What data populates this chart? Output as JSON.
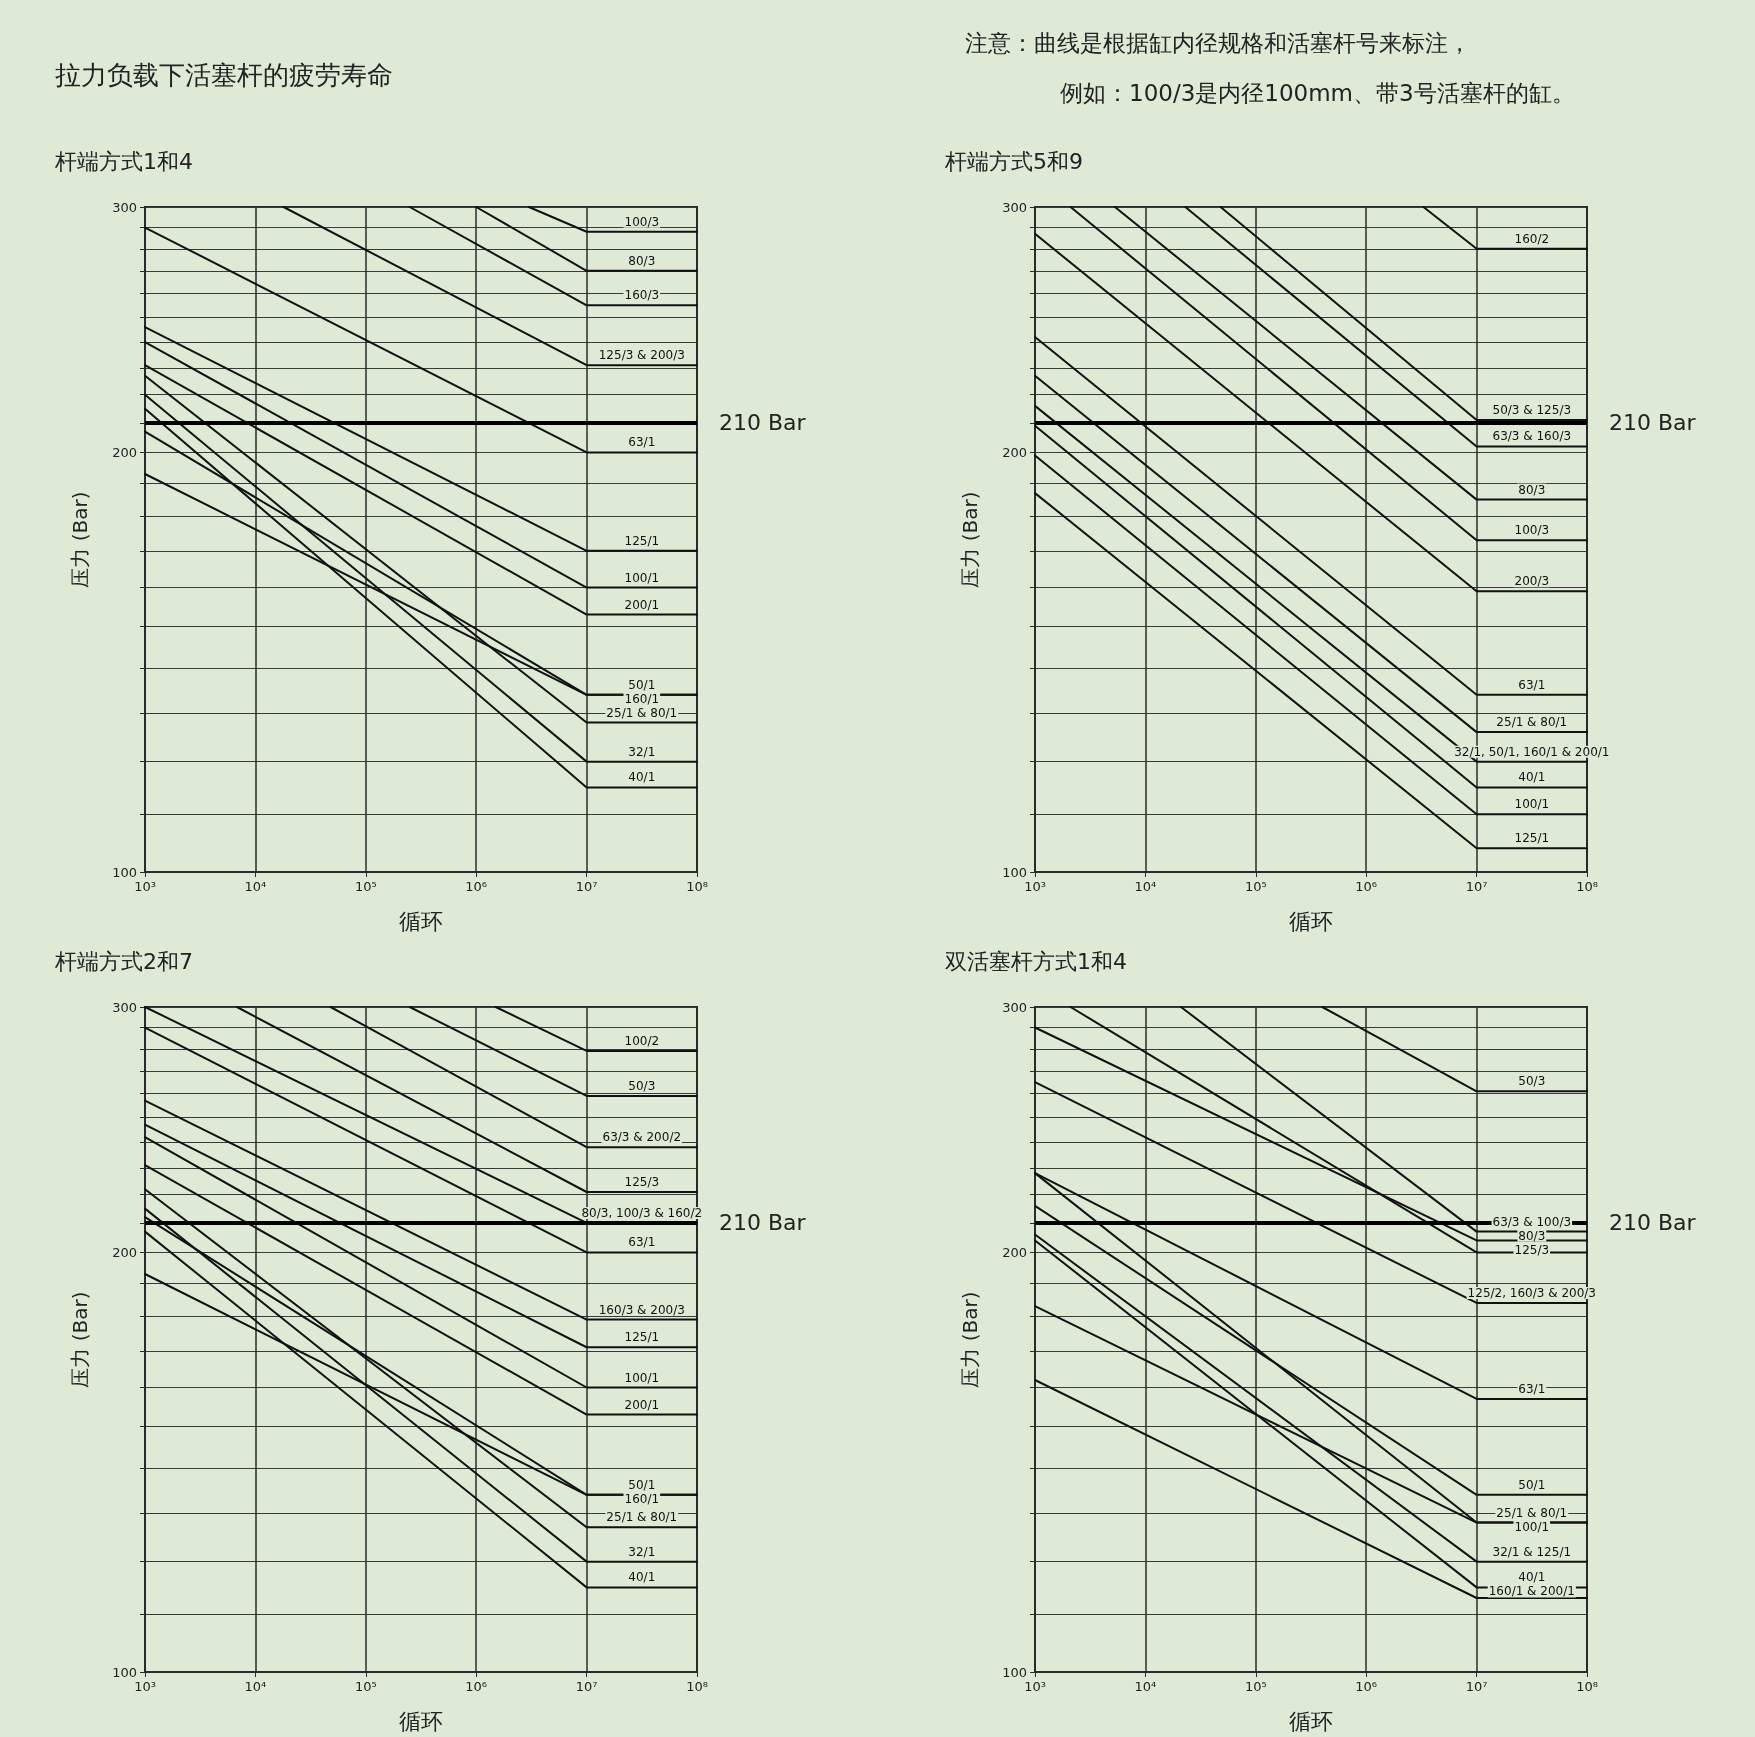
{
  "chart_data": [
    {
      "type": "other",
      "title": "拉力负载下活塞杆的疲劳寿命",
      "annotations": [
        "注意：曲线是根据缸内径规格和活塞杆号来标注，",
        "例如：100/3是内径100mm、带3号活塞杆的缸。"
      ]
    },
    {
      "type": "line",
      "title": "杆端方式1和4",
      "xlabel": "循环",
      "ylabel": "压力 (Bar)",
      "log": "xy",
      "grid": true,
      "xlim": [
        1000,
        100000000
      ],
      "xticks": [
        {
          "value": 1000,
          "label": "10³"
        },
        {
          "value": 10000,
          "label": "10⁴"
        },
        {
          "value": 100000,
          "label": "10⁵"
        },
        {
          "value": 1000000,
          "label": "10⁶"
        },
        {
          "value": 10000000,
          "label": "10⁷"
        },
        {
          "value": 100000000,
          "label": "10⁸"
        }
      ],
      "ylim": [
        100,
        300
      ],
      "yticks": [
        100,
        {
          "value": 110,
          "label": null
        },
        {
          "value": 120,
          "label": null
        },
        {
          "value": 130,
          "label": null
        },
        {
          "value": 140,
          "label": null
        },
        {
          "value": 150,
          "label": null
        },
        {
          "value": 160,
          "label": null
        },
        {
          "value": 170,
          "label": null
        },
        {
          "value": 180,
          "label": null
        },
        {
          "value": 190,
          "label": null
        },
        200,
        {
          "value": 210,
          "label": null
        },
        {
          "value": 220,
          "label": null
        },
        {
          "value": 230,
          "label": null
        },
        {
          "value": 240,
          "label": null
        },
        {
          "value": 250,
          "label": null
        },
        {
          "value": 260,
          "label": null
        },
        {
          "value": 270,
          "label": null
        },
        {
          "value": 280,
          "label": null
        },
        {
          "value": 290,
          "label": null
        },
        300
      ],
      "ref_lines": [
        {
          "axis": "y",
          "value": 210,
          "label": "210 Bar"
        }
      ],
      "series": [
        {
          "name": "100/3",
          "color": "#111111",
          "x": [
            3000000,
            10000000,
            100000000
          ],
          "values": [
            300,
            288,
            288
          ]
        },
        {
          "name": "80/3",
          "color": "#111111",
          "x": [
            1000000,
            10000000,
            100000000
          ],
          "values": [
            300,
            270,
            270
          ]
        },
        {
          "name": "160/3",
          "color": "#111111",
          "x": [
            250000,
            10000000,
            100000000
          ],
          "values": [
            300,
            255,
            255
          ]
        },
        {
          "name": "125/3 & 200/3",
          "color": "#111111",
          "x": [
            18000,
            10000000,
            100000000
          ],
          "values": [
            300,
            231,
            231
          ]
        },
        {
          "name": "63/1",
          "color": "#111111",
          "x": [
            1000,
            10000000,
            100000000
          ],
          "values": [
            290,
            200,
            200
          ]
        },
        {
          "name": "125/1",
          "color": "#111111",
          "x": [
            1000,
            10000000,
            100000000
          ],
          "values": [
            246,
            170,
            170
          ]
        },
        {
          "name": "100/1",
          "color": "#111111",
          "x": [
            1000,
            10000000,
            100000000
          ],
          "values": [
            240,
            160,
            160
          ]
        },
        {
          "name": "200/1",
          "color": "#111111",
          "x": [
            1000,
            10000000,
            100000000
          ],
          "values": [
            231,
            153,
            153
          ]
        },
        {
          "name": "50/1",
          "color": "#111111",
          "x": [
            1000,
            10000000,
            100000000
          ],
          "values": [
            207,
            134,
            134
          ]
        },
        {
          "name": "160/1",
          "color": "#111111",
          "x": [
            1000,
            10000000,
            100000000
          ],
          "values": [
            193,
            134,
            134
          ]
        },
        {
          "name": "25/1 & 80/1",
          "color": "#111111",
          "x": [
            1000,
            10000000,
            100000000
          ],
          "values": [
            227,
            128,
            128
          ]
        },
        {
          "name": "32/1",
          "color": "#111111",
          "x": [
            1000,
            10000000,
            100000000
          ],
          "values": [
            220,
            120,
            120
          ]
        },
        {
          "name": "40/1",
          "color": "#111111",
          "x": [
            1000,
            10000000,
            100000000
          ],
          "values": [
            215,
            115,
            115
          ]
        }
      ]
    },
    {
      "type": "line",
      "title": "杆端方式5和9",
      "xlabel": "循环",
      "ylabel": "压力 (Bar)",
      "log": "xy",
      "grid": true,
      "xlim": [
        1000,
        100000000
      ],
      "xticks": [
        {
          "value": 1000,
          "label": "10³"
        },
        {
          "value": 10000,
          "label": "10⁴"
        },
        {
          "value": 100000,
          "label": "10⁵"
        },
        {
          "value": 1000000,
          "label": "10⁶"
        },
        {
          "value": 10000000,
          "label": "10⁷"
        },
        {
          "value": 100000000,
          "label": "10⁸"
        }
      ],
      "ylim": [
        100,
        300
      ],
      "yticks": [
        100,
        {
          "value": 110,
          "label": null
        },
        {
          "value": 120,
          "label": null
        },
        {
          "value": 130,
          "label": null
        },
        {
          "value": 140,
          "label": null
        },
        {
          "value": 150,
          "label": null
        },
        {
          "value": 160,
          "label": null
        },
        {
          "value": 170,
          "label": null
        },
        {
          "value": 180,
          "label": null
        },
        {
          "value": 190,
          "label": null
        },
        200,
        {
          "value": 210,
          "label": null
        },
        {
          "value": 220,
          "label": null
        },
        {
          "value": 230,
          "label": null
        },
        {
          "value": 240,
          "label": null
        },
        {
          "value": 250,
          "label": null
        },
        {
          "value": 260,
          "label": null
        },
        {
          "value": 270,
          "label": null
        },
        {
          "value": 280,
          "label": null
        },
        {
          "value": 290,
          "label": null
        },
        300
      ],
      "ref_lines": [
        {
          "axis": "y",
          "value": 210,
          "label": "210 Bar"
        }
      ],
      "series": [
        {
          "name": "160/2",
          "color": "#111111",
          "x": [
            3300000,
            10000000,
            100000000
          ],
          "values": [
            300,
            280,
            280
          ]
        },
        {
          "name": "50/3 & 125/3",
          "color": "#111111",
          "x": [
            48000,
            10000000,
            100000000
          ],
          "values": [
            300,
            211,
            211
          ]
        },
        {
          "name": "63/3 & 160/3",
          "color": "#111111",
          "x": [
            23000,
            10000000,
            100000000
          ],
          "values": [
            300,
            202,
            202
          ]
        },
        {
          "name": "80/3",
          "color": "#111111",
          "x": [
            5300,
            10000000,
            100000000
          ],
          "values": [
            300,
            185,
            185
          ]
        },
        {
          "name": "100/3",
          "color": "#111111",
          "x": [
            2100,
            10000000,
            100000000
          ],
          "values": [
            300,
            173,
            173
          ]
        },
        {
          "name": "200/3",
          "color": "#111111",
          "x": [
            1000,
            10000000,
            100000000
          ],
          "values": [
            287,
            159,
            159
          ]
        },
        {
          "name": "63/1",
          "color": "#111111",
          "x": [
            1000,
            10000000,
            100000000
          ],
          "values": [
            242,
            134,
            134
          ]
        },
        {
          "name": "25/1 & 80/1",
          "color": "#111111",
          "x": [
            1000,
            10000000,
            100000000
          ],
          "values": [
            227,
            126,
            126
          ]
        },
        {
          "name": "32/1, 50/1, 160/1 & 200/1",
          "color": "#111111",
          "x": [
            1000,
            10000000,
            100000000
          ],
          "values": [
            216,
            120,
            120
          ]
        },
        {
          "name": "40/1",
          "color": "#111111",
          "x": [
            1000,
            10000000,
            100000000
          ],
          "values": [
            209,
            115,
            115
          ]
        },
        {
          "name": "100/1",
          "color": "#111111",
          "x": [
            1000,
            10000000,
            100000000
          ],
          "values": [
            199,
            110,
            110
          ]
        },
        {
          "name": "125/1",
          "color": "#111111",
          "x": [
            1000,
            10000000,
            100000000
          ],
          "values": [
            187,
            104,
            104
          ]
        }
      ]
    },
    {
      "type": "line",
      "title": "杆端方式2和7",
      "xlabel": "循环",
      "ylabel": "压力 (Bar)",
      "log": "xy",
      "grid": true,
      "xlim": [
        1000,
        100000000
      ],
      "xticks": [
        {
          "value": 1000,
          "label": "10³"
        },
        {
          "value": 10000,
          "label": "10⁴"
        },
        {
          "value": 100000,
          "label": "10⁵"
        },
        {
          "value": 1000000,
          "label": "10⁶"
        },
        {
          "value": 10000000,
          "label": "10⁷"
        },
        {
          "value": 100000000,
          "label": "10⁸"
        }
      ],
      "ylim": [
        100,
        300
      ],
      "yticks": [
        100,
        {
          "value": 110,
          "label": null
        },
        {
          "value": 120,
          "label": null
        },
        {
          "value": 130,
          "label": null
        },
        {
          "value": 140,
          "label": null
        },
        {
          "value": 150,
          "label": null
        },
        {
          "value": 160,
          "label": null
        },
        {
          "value": 170,
          "label": null
        },
        {
          "value": 180,
          "label": null
        },
        {
          "value": 190,
          "label": null
        },
        200,
        {
          "value": 210,
          "label": null
        },
        {
          "value": 220,
          "label": null
        },
        {
          "value": 230,
          "label": null
        },
        {
          "value": 240,
          "label": null
        },
        {
          "value": 250,
          "label": null
        },
        {
          "value": 260,
          "label": null
        },
        {
          "value": 270,
          "label": null
        },
        {
          "value": 280,
          "label": null
        },
        {
          "value": 290,
          "label": null
        },
        300
      ],
      "ref_lines": [
        {
          "axis": "y",
          "value": 210,
          "label": "210 Bar"
        }
      ],
      "series": [
        {
          "name": "100/2",
          "color": "#111111",
          "x": [
            1500000,
            10000000,
            100000000
          ],
          "values": [
            300,
            279,
            279
          ]
        },
        {
          "name": "50/3",
          "color": "#111111",
          "x": [
            250000,
            10000000,
            100000000
          ],
          "values": [
            300,
            259,
            259
          ]
        },
        {
          "name": "63/3 & 200/2",
          "color": "#111111",
          "x": [
            48000,
            10000000,
            100000000
          ],
          "values": [
            300,
            238,
            238
          ]
        },
        {
          "name": "125/3",
          "color": "#111111",
          "x": [
            6800,
            10000000,
            100000000
          ],
          "values": [
            300,
            221,
            221
          ]
        },
        {
          "name": "80/3, 100/3 & 160/2",
          "color": "#111111",
          "x": [
            1000,
            10000000,
            100000000
          ],
          "values": [
            300,
            210,
            210
          ]
        },
        {
          "name": "63/1",
          "color": "#111111",
          "x": [
            1000,
            10000000,
            100000000
          ],
          "values": [
            290,
            200,
            200
          ]
        },
        {
          "name": "160/3 & 200/3",
          "color": "#111111",
          "x": [
            1000,
            10000000,
            100000000
          ],
          "values": [
            257,
            179,
            179
          ]
        },
        {
          "name": "125/1",
          "color": "#111111",
          "x": [
            1000,
            10000000,
            100000000
          ],
          "values": [
            247,
            171,
            171
          ]
        },
        {
          "name": "100/1",
          "color": "#111111",
          "x": [
            1000,
            10000000,
            100000000
          ],
          "values": [
            242,
            160,
            160
          ]
        },
        {
          "name": "200/1",
          "color": "#111111",
          "x": [
            1000,
            10000000,
            100000000
          ],
          "values": [
            231,
            153,
            153
          ]
        },
        {
          "name": "50/1",
          "color": "#111111",
          "x": [
            1000,
            10000000,
            100000000
          ],
          "values": [
            212,
            134,
            134
          ]
        },
        {
          "name": "160/1",
          "color": "#111111",
          "x": [
            1000,
            10000000,
            100000000
          ],
          "values": [
            193,
            134,
            134
          ]
        },
        {
          "name": "25/1 & 80/1",
          "color": "#111111",
          "x": [
            1000,
            10000000,
            100000000
          ],
          "values": [
            222,
            127,
            127
          ]
        },
        {
          "name": "32/1",
          "color": "#111111",
          "x": [
            1000,
            10000000,
            100000000
          ],
          "values": [
            215,
            120,
            120
          ]
        },
        {
          "name": "40/1",
          "color": "#111111",
          "x": [
            1000,
            10000000,
            100000000
          ],
          "values": [
            207,
            115,
            115
          ]
        }
      ]
    },
    {
      "type": "line",
      "title": "双活塞杆方式1和4",
      "xlabel": "循环",
      "ylabel": "压力 (Bar)",
      "log": "xy",
      "grid": true,
      "xlim": [
        1000,
        100000000
      ],
      "xticks": [
        {
          "value": 1000,
          "label": "10³"
        },
        {
          "value": 10000,
          "label": "10⁴"
        },
        {
          "value": 100000,
          "label": "10⁵"
        },
        {
          "value": 1000000,
          "label": "10⁶"
        },
        {
          "value": 10000000,
          "label": "10⁷"
        },
        {
          "value": 100000000,
          "label": "10⁸"
        }
      ],
      "ylim": [
        100,
        300
      ],
      "yticks": [
        100,
        {
          "value": 110,
          "label": null
        },
        {
          "value": 120,
          "label": null
        },
        {
          "value": 130,
          "label": null
        },
        {
          "value": 140,
          "label": null
        },
        {
          "value": 150,
          "label": null
        },
        {
          "value": 160,
          "label": null
        },
        {
          "value": 170,
          "label": null
        },
        {
          "value": 180,
          "label": null
        },
        {
          "value": 190,
          "label": null
        },
        200,
        {
          "value": 210,
          "label": null
        },
        {
          "value": 220,
          "label": null
        },
        {
          "value": 230,
          "label": null
        },
        {
          "value": 240,
          "label": null
        },
        {
          "value": 250,
          "label": null
        },
        {
          "value": 260,
          "label": null
        },
        {
          "value": 270,
          "label": null
        },
        {
          "value": 280,
          "label": null
        },
        {
          "value": 290,
          "label": null
        },
        300
      ],
      "ref_lines": [
        {
          "axis": "y",
          "value": 210,
          "label": "210 Bar"
        }
      ],
      "series": [
        {
          "name": "50/3",
          "color": "#111111",
          "x": [
            400000,
            10000000,
            100000000
          ],
          "values": [
            300,
            261,
            261
          ]
        },
        {
          "name": "63/3 & 100/3",
          "color": "#111111",
          "x": [
            21000,
            10000000,
            100000000
          ],
          "values": [
            300,
            207,
            207
          ]
        },
        {
          "name": "80/3",
          "color": "#111111",
          "x": [
            1000,
            10000000,
            100000000
          ],
          "values": [
            290,
            204,
            204
          ]
        },
        {
          "name": "125/3",
          "color": "#111111",
          "x": [
            2100,
            10000000,
            100000000
          ],
          "values": [
            300,
            200,
            200
          ]
        },
        {
          "name": "125/2, 160/3 & 200/3",
          "color": "#111111",
          "x": [
            1000,
            10000000,
            100000000
          ],
          "values": [
            265,
            184,
            184
          ]
        },
        {
          "name": "63/1",
          "color": "#111111",
          "x": [
            1000,
            10000000,
            100000000
          ],
          "values": [
            228,
            157,
            157
          ]
        },
        {
          "name": "50/1",
          "color": "#111111",
          "x": [
            1000,
            10000000,
            100000000
          ],
          "values": [
            216,
            134,
            134
          ]
        },
        {
          "name": "25/1 & 80/1",
          "color": "#111111",
          "x": [
            1000,
            10000000,
            100000000
          ],
          "values": [
            228,
            128,
            128
          ]
        },
        {
          "name": "100/1",
          "color": "#111111",
          "x": [
            1000,
            10000000,
            100000000
          ],
          "values": [
            183,
            128,
            128
          ]
        },
        {
          "name": "32/1 & 125/1",
          "color": "#111111",
          "x": [
            1000,
            10000000,
            100000000
          ],
          "values": [
            206,
            120,
            120
          ]
        },
        {
          "name": "40/1",
          "color": "#111111",
          "x": [
            1000,
            10000000,
            100000000
          ],
          "values": [
            204,
            115,
            115
          ]
        },
        {
          "name": "160/1 & 200/1",
          "color": "#111111",
          "x": [
            1000,
            10000000,
            100000000
          ],
          "values": [
            162,
            113,
            113
          ]
        }
      ]
    }
  ]
}
